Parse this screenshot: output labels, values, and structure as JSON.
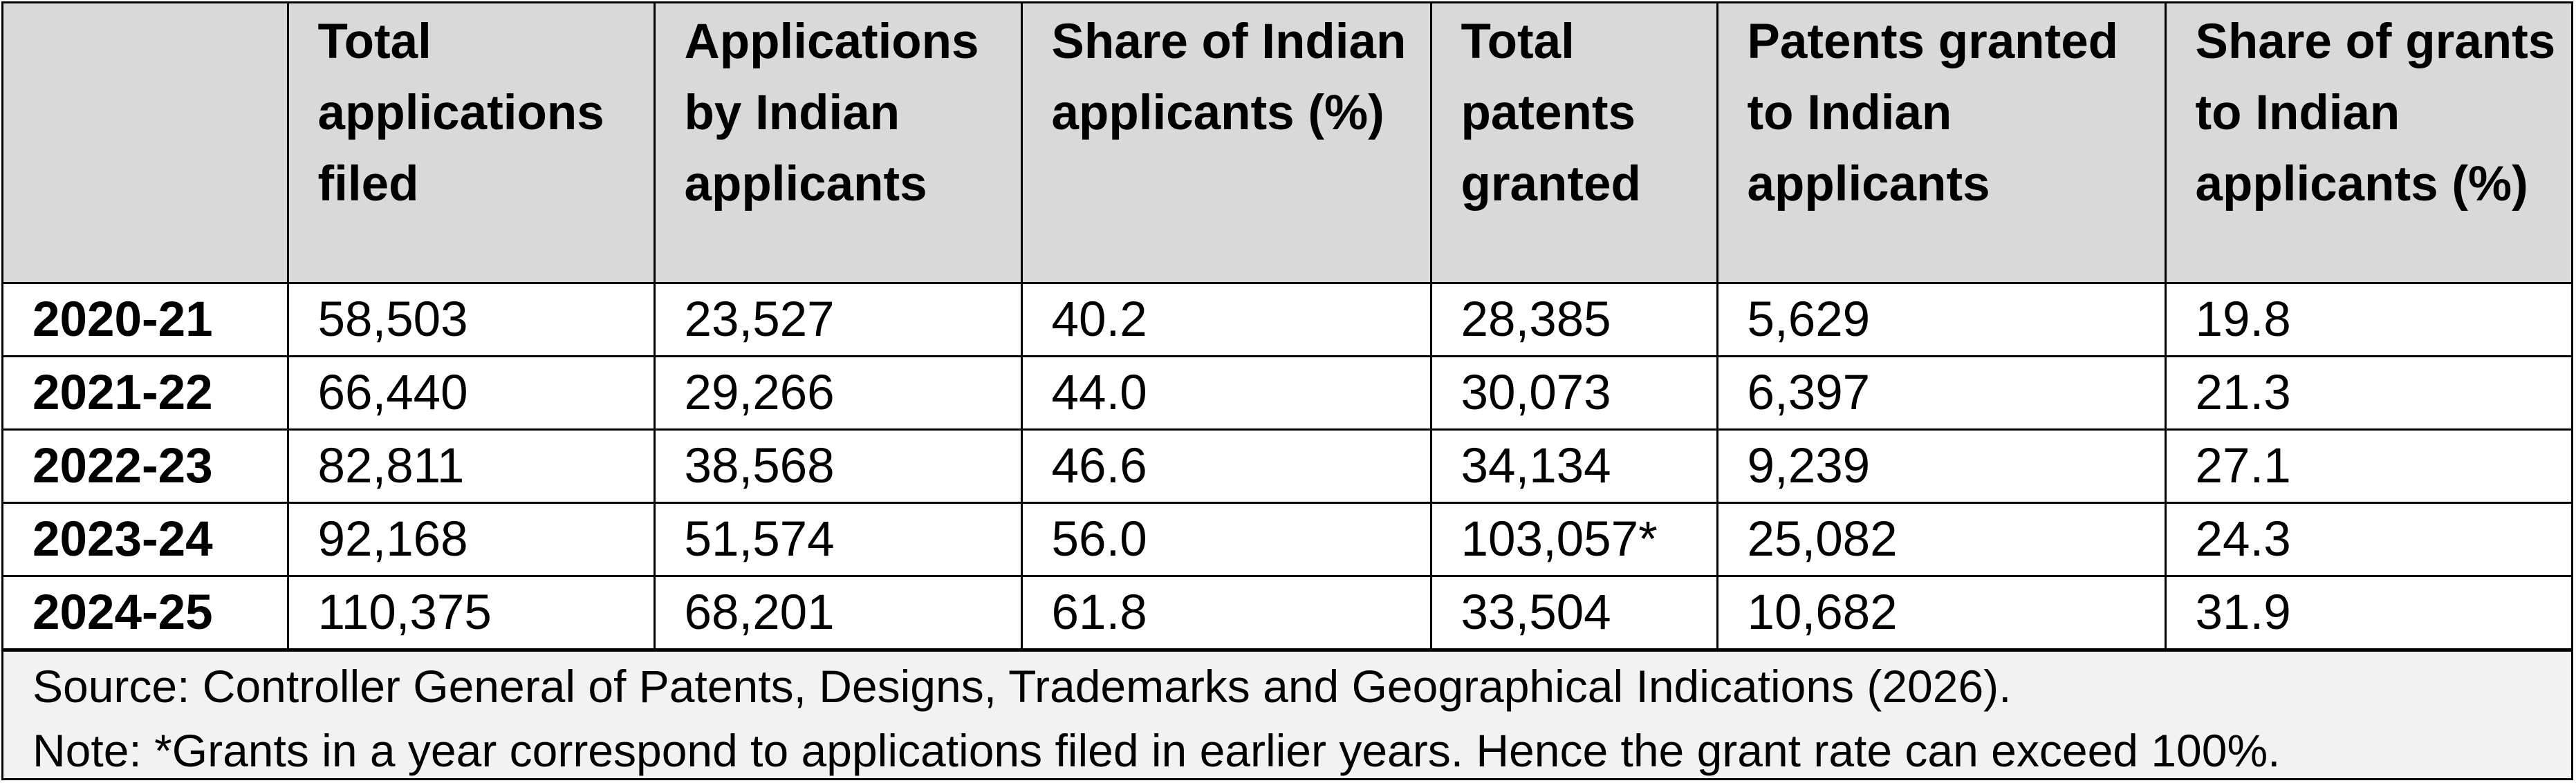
{
  "table": {
    "headers": [
      "",
      "Total applications filed",
      "Applications by Indian applicants",
      "Share of Indian applicants (%)",
      "Total patents granted",
      "Patents granted to Indian applicants",
      "Share of grants to Indian applicants (%)"
    ],
    "rows": [
      [
        "2020-21",
        "58,503",
        "23,527",
        "40.2",
        "28,385",
        "5,629",
        "19.8"
      ],
      [
        "2021-22",
        "66,440",
        "29,266",
        "44.0",
        "30,073",
        "6,397",
        "21.3"
      ],
      [
        "2022-23",
        "82,811",
        "38,568",
        "46.6",
        "34,134",
        "9,239",
        "27.1"
      ],
      [
        "2023-24",
        "92,168",
        "51,574",
        "56.0",
        "103,057*",
        "25,082",
        "24.3"
      ],
      [
        "2024-25",
        "110,375",
        "68,201",
        "61.8",
        "33,504",
        "10,682",
        "31.9"
      ]
    ]
  },
  "footer": {
    "source": "Source: Controller General of Patents, Designs, Trademarks and Geographical Indications (2026).",
    "note": "Note: *Grants in a year correspond to applications filed in earlier years. Hence the grant rate can exceed 100%."
  },
  "colors": {
    "header_background": "#d9d9d9",
    "footer_background": "#f2f2f2",
    "border": "#000000"
  }
}
